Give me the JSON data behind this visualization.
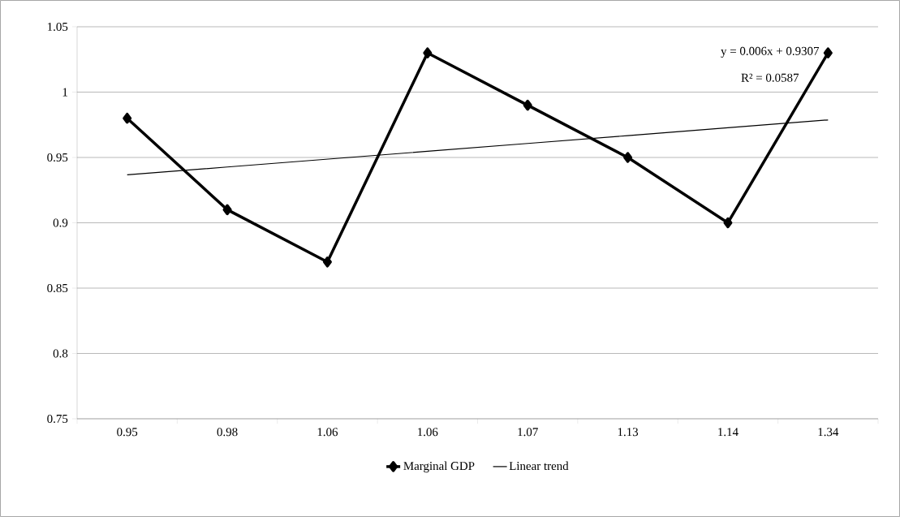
{
  "chart_data": {
    "type": "line",
    "categories": [
      "0.95",
      "0.98",
      "1.06",
      "1.06",
      "1.07",
      "1.13",
      "1.14",
      "1.34"
    ],
    "series": [
      {
        "name": "Marginal GDP",
        "color": "#000000",
        "marker": "diamond",
        "values": [
          0.98,
          0.91,
          0.87,
          1.03,
          0.99,
          0.95,
          0.9,
          1.03
        ]
      },
      {
        "name": "Linear trend",
        "color": "#000000",
        "marker": "none",
        "values": [
          0.9367,
          0.9427,
          0.9487,
          0.9547,
          0.9607,
          0.9667,
          0.9727,
          0.9787
        ]
      }
    ],
    "ylim": [
      0.75,
      1.05
    ],
    "yticks": [
      0.75,
      0.8,
      0.85,
      0.9,
      0.95,
      1,
      1.05
    ],
    "grid": "y",
    "legend": "bottom",
    "annotations": [
      "y = 0.006x + 0.9307",
      "R² = 0.0587"
    ]
  }
}
